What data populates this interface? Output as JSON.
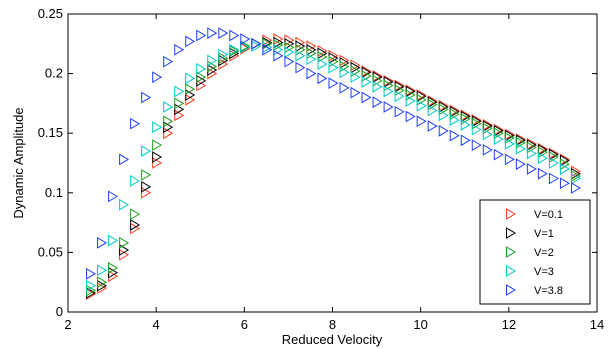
{
  "chart_data": {
    "type": "scatter",
    "title": "",
    "xlabel": "Reduced Velocity",
    "ylabel": "Dynamic Amplitude",
    "xlim": [
      2,
      14
    ],
    "ylim": [
      0,
      0.25
    ],
    "xticks": [
      2,
      4,
      6,
      8,
      10,
      12,
      14
    ],
    "xtick_labels": [
      "2",
      "4",
      "6",
      "8",
      "10",
      "12",
      "14"
    ],
    "yticks": [
      0,
      0.05,
      0.1,
      0.15,
      0.2,
      0.25
    ],
    "ytick_labels": [
      "0",
      "0.05",
      "0.1",
      "0.15",
      "0.2",
      "0.25"
    ],
    "grid": false,
    "legend_position": "bottom-right",
    "marker": "triangle-right",
    "series": [
      {
        "name": "V=0.1",
        "color": "#ff3b1f",
        "x": [
          2.5,
          2.75,
          3.0,
          3.25,
          3.5,
          3.75,
          4.0,
          4.25,
          4.5,
          4.75,
          5.0,
          5.25,
          5.5,
          5.75,
          6.0,
          6.25,
          6.5,
          6.75,
          7.0,
          7.25,
          7.5,
          7.75,
          8.0,
          8.25,
          8.5,
          8.75,
          9.0,
          9.25,
          9.5,
          9.75,
          10.0,
          10.25,
          10.5,
          10.75,
          11.0,
          11.25,
          11.5,
          11.75,
          12.0,
          12.25,
          12.5,
          12.75,
          13.0,
          13.25,
          13.5
        ],
        "y": [
          0.015,
          0.02,
          0.03,
          0.048,
          0.07,
          0.1,
          0.125,
          0.15,
          0.165,
          0.178,
          0.19,
          0.2,
          0.208,
          0.215,
          0.221,
          0.225,
          0.228,
          0.229,
          0.228,
          0.226,
          0.223,
          0.219,
          0.215,
          0.211,
          0.207,
          0.202,
          0.198,
          0.194,
          0.19,
          0.186,
          0.182,
          0.177,
          0.173,
          0.169,
          0.165,
          0.161,
          0.157,
          0.153,
          0.149,
          0.145,
          0.141,
          0.137,
          0.133,
          0.128,
          0.118
        ]
      },
      {
        "name": "V=1",
        "color": "#000000",
        "x": [
          2.5,
          2.75,
          3.0,
          3.25,
          3.5,
          3.75,
          4.0,
          4.25,
          4.5,
          4.75,
          5.0,
          5.25,
          5.5,
          5.75,
          6.0,
          6.25,
          6.5,
          6.75,
          7.0,
          7.25,
          7.5,
          7.75,
          8.0,
          8.25,
          8.5,
          8.75,
          9.0,
          9.25,
          9.5,
          9.75,
          10.0,
          10.25,
          10.5,
          10.75,
          11.0,
          11.25,
          11.5,
          11.75,
          12.0,
          12.25,
          12.5,
          12.75,
          13.0,
          13.25,
          13.5
        ],
        "y": [
          0.016,
          0.022,
          0.033,
          0.052,
          0.073,
          0.105,
          0.13,
          0.155,
          0.17,
          0.182,
          0.194,
          0.203,
          0.211,
          0.217,
          0.222,
          0.225,
          0.226,
          0.226,
          0.225,
          0.223,
          0.22,
          0.217,
          0.213,
          0.209,
          0.205,
          0.201,
          0.197,
          0.193,
          0.189,
          0.185,
          0.181,
          0.176,
          0.172,
          0.168,
          0.164,
          0.16,
          0.156,
          0.152,
          0.148,
          0.144,
          0.14,
          0.136,
          0.132,
          0.127,
          0.116
        ]
      },
      {
        "name": "V=2",
        "color": "#1aa01a",
        "x": [
          2.5,
          2.75,
          3.0,
          3.25,
          3.5,
          3.75,
          4.0,
          4.25,
          4.5,
          4.75,
          5.0,
          5.25,
          5.5,
          5.75,
          6.0,
          6.25,
          6.5,
          6.75,
          7.0,
          7.25,
          7.5,
          7.75,
          8.0,
          8.25,
          8.5,
          8.75,
          9.0,
          9.25,
          9.5,
          9.75,
          10.0,
          10.25,
          10.5,
          10.75,
          11.0,
          11.25,
          11.5,
          11.75,
          12.0,
          12.25,
          12.5,
          12.75,
          13.0,
          13.25,
          13.5
        ],
        "y": [
          0.018,
          0.025,
          0.037,
          0.058,
          0.082,
          0.115,
          0.14,
          0.16,
          0.175,
          0.187,
          0.197,
          0.206,
          0.213,
          0.219,
          0.223,
          0.225,
          0.225,
          0.224,
          0.222,
          0.22,
          0.217,
          0.214,
          0.21,
          0.206,
          0.202,
          0.198,
          0.194,
          0.19,
          0.186,
          0.182,
          0.178,
          0.174,
          0.17,
          0.166,
          0.162,
          0.158,
          0.154,
          0.15,
          0.146,
          0.142,
          0.138,
          0.134,
          0.13,
          0.124,
          0.114
        ]
      },
      {
        "name": "V=3",
        "color": "#00c8c8",
        "x": [
          2.5,
          2.75,
          3.0,
          3.25,
          3.5,
          3.75,
          4.0,
          4.25,
          4.5,
          4.75,
          5.0,
          5.25,
          5.5,
          5.75,
          6.0,
          6.25,
          6.5,
          6.75,
          7.0,
          7.25,
          7.5,
          7.75,
          8.0,
          8.25,
          8.5,
          8.75,
          9.0,
          9.25,
          9.5,
          9.75,
          10.0,
          10.25,
          10.5,
          10.75,
          11.0,
          11.25,
          11.5,
          11.75,
          12.0,
          12.25,
          12.5,
          12.75,
          13.0,
          13.25,
          13.5
        ],
        "y": [
          0.022,
          0.035,
          0.06,
          0.09,
          0.11,
          0.135,
          0.155,
          0.172,
          0.185,
          0.196,
          0.204,
          0.211,
          0.216,
          0.22,
          0.222,
          0.223,
          0.222,
          0.22,
          0.218,
          0.215,
          0.212,
          0.208,
          0.205,
          0.201,
          0.197,
          0.193,
          0.189,
          0.185,
          0.181,
          0.177,
          0.173,
          0.169,
          0.165,
          0.161,
          0.157,
          0.153,
          0.149,
          0.145,
          0.141,
          0.137,
          0.133,
          0.129,
          0.125,
          0.12,
          0.112
        ]
      },
      {
        "name": "V=3.8",
        "color": "#1f3fff",
        "x": [
          2.5,
          2.75,
          3.0,
          3.25,
          3.5,
          3.75,
          4.0,
          4.25,
          4.5,
          4.75,
          5.0,
          5.25,
          5.5,
          5.75,
          6.0,
          6.25,
          6.5,
          6.75,
          7.0,
          7.25,
          7.5,
          7.75,
          8.0,
          8.25,
          8.5,
          8.75,
          9.0,
          9.25,
          9.5,
          9.75,
          10.0,
          10.25,
          10.5,
          10.75,
          11.0,
          11.25,
          11.5,
          11.75,
          12.0,
          12.25,
          12.5,
          12.75,
          13.0,
          13.25,
          13.5
        ],
        "y": [
          0.032,
          0.058,
          0.097,
          0.128,
          0.158,
          0.18,
          0.197,
          0.21,
          0.22,
          0.227,
          0.232,
          0.234,
          0.234,
          0.232,
          0.229,
          0.225,
          0.22,
          0.215,
          0.21,
          0.205,
          0.2,
          0.196,
          0.192,
          0.188,
          0.184,
          0.18,
          0.176,
          0.172,
          0.168,
          0.164,
          0.16,
          0.156,
          0.152,
          0.148,
          0.144,
          0.14,
          0.136,
          0.132,
          0.128,
          0.124,
          0.12,
          0.116,
          0.112,
          0.108,
          0.104
        ]
      }
    ]
  }
}
